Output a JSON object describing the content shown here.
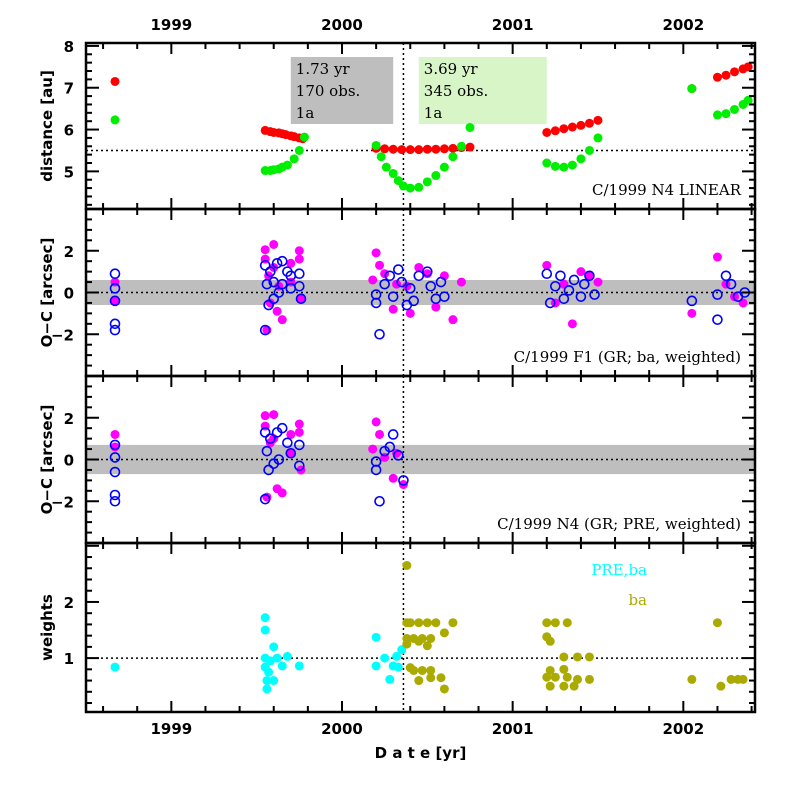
{
  "chart_data": [
    {
      "type": "scatter",
      "panel": "distance",
      "ylabel": "distance [au]",
      "ylim": [
        4.1,
        8.07
      ],
      "xlim": [
        1998.5,
        2002.42
      ],
      "yticks": [
        5,
        6,
        7,
        8
      ],
      "top_xtick_labels": [
        "1999",
        "2000",
        "2001",
        "2002"
      ],
      "reference_line": 5.5,
      "marker_line_x": 2000.36,
      "annotation": "C/1999 N4 LINEAR",
      "boxes": [
        {
          "lines": [
            "1.73 yr",
            "170 obs.",
            "1a"
          ],
          "color": "#bebebe",
          "x_range": [
            1999.7,
            2000.3
          ]
        },
        {
          "lines": [
            "3.69 yr",
            "345 obs.",
            "1a"
          ],
          "color": "#d8f5c8",
          "x_range": [
            2000.45,
            2001.2
          ]
        }
      ],
      "series": [
        {
          "name": "heliocentric distance",
          "color": "#ff0000",
          "x": [
            1998.67,
            1999.55,
            1999.58,
            1999.6,
            1999.63,
            1999.65,
            1999.67,
            1999.7,
            1999.72,
            1999.75,
            1999.77,
            2000.2,
            2000.25,
            2000.3,
            2000.35,
            2000.4,
            2000.45,
            2000.5,
            2000.55,
            2000.6,
            2000.65,
            2000.7,
            2000.75,
            2001.2,
            2001.25,
            2001.3,
            2001.35,
            2001.4,
            2001.45,
            2001.5,
            2002.05,
            2002.2,
            2002.25,
            2002.3,
            2002.35,
            2002.38
          ],
          "y": [
            7.15,
            5.98,
            5.95,
            5.93,
            5.92,
            5.9,
            5.88,
            5.85,
            5.83,
            5.8,
            5.78,
            5.55,
            5.54,
            5.53,
            5.52,
            5.52,
            5.52,
            5.53,
            5.53,
            5.54,
            5.55,
            5.57,
            5.58,
            5.93,
            5.97,
            6.02,
            6.06,
            6.1,
            6.15,
            6.22,
            6.98,
            7.25,
            7.3,
            7.38,
            7.45,
            7.5
          ]
        },
        {
          "name": "geocentric distance",
          "color": "#00ee00",
          "x": [
            1998.67,
            1999.55,
            1999.58,
            1999.6,
            1999.63,
            1999.65,
            1999.68,
            1999.72,
            1999.75,
            1999.78,
            2000.2,
            2000.23,
            2000.26,
            2000.3,
            2000.33,
            2000.36,
            2000.4,
            2000.45,
            2000.5,
            2000.55,
            2000.6,
            2000.65,
            2000.7,
            2000.75,
            2001.2,
            2001.25,
            2001.3,
            2001.35,
            2001.4,
            2001.45,
            2001.5,
            2002.05,
            2002.2,
            2002.25,
            2002.3,
            2002.35,
            2002.38
          ],
          "y": [
            6.23,
            5.02,
            5.02,
            5.04,
            5.06,
            5.1,
            5.15,
            5.3,
            5.5,
            5.82,
            5.62,
            5.35,
            5.1,
            4.95,
            4.78,
            4.65,
            4.6,
            4.62,
            4.75,
            4.9,
            5.1,
            5.35,
            5.6,
            6.05,
            5.2,
            5.12,
            5.1,
            5.15,
            5.3,
            5.5,
            5.8,
            6.98,
            6.35,
            6.38,
            6.48,
            6.6,
            6.7
          ]
        }
      ]
    },
    {
      "type": "scatter",
      "panel": "oc-f1",
      "ylabel": "O−C [arcsec]",
      "ylim": [
        -4,
        4
      ],
      "xlim": [
        1998.5,
        2002.42
      ],
      "yticks": [
        -2,
        0,
        2
      ],
      "band": [
        -0.6,
        0.6
      ],
      "reference_line": 0,
      "marker_line_x": 2000.36,
      "annotation": "C/1999 F1 (GR; ba, weighted)",
      "series": [
        {
          "name": "O-C dec",
          "color": "#ff00ff",
          "marker": "filled",
          "x": [
            1998.67,
            1998.67,
            1999.55,
            1999.55,
            1999.56,
            1999.57,
            1999.58,
            1999.6,
            1999.6,
            1999.62,
            1999.63,
            1999.65,
            1999.7,
            1999.7,
            1999.75,
            1999.75,
            1999.76,
            2000.18,
            2000.2,
            2000.22,
            2000.25,
            2000.3,
            2000.32,
            2000.38,
            2000.4,
            2000.45,
            2000.5,
            2000.55,
            2000.6,
            2000.65,
            2000.7,
            2001.2,
            2001.25,
            2001.3,
            2001.35,
            2001.4,
            2001.45,
            2001.5,
            2002.05,
            2002.2,
            2002.25,
            2002.3,
            2002.35
          ],
          "y": [
            0.5,
            -0.4,
            2.05,
            1.6,
            -1.8,
            0.8,
            -0.5,
            2.3,
            1.2,
            -0.9,
            0.3,
            -1.3,
            1.4,
            0.5,
            2.0,
            1.6,
            -0.3,
            0.6,
            1.9,
            1.3,
            0.9,
            -0.8,
            0.4,
            0.3,
            -1.0,
            1.2,
            0.9,
            -0.7,
            0.8,
            -1.3,
            0.5,
            1.3,
            -0.5,
            0.4,
            -1.5,
            1.0,
            0.8,
            0.5,
            -1.0,
            1.7,
            0.4,
            -0.2,
            -0.5
          ]
        },
        {
          "name": "O-C ra",
          "color": "#0000ff",
          "marker": "open",
          "x": [
            1998.67,
            1998.67,
            1998.67,
            1998.67,
            1998.67,
            1999.55,
            1999.55,
            1999.56,
            1999.57,
            1999.58,
            1999.6,
            1999.6,
            1999.62,
            1999.63,
            1999.65,
            1999.65,
            1999.68,
            1999.7,
            1999.7,
            1999.75,
            1999.75,
            1999.76,
            2000.2,
            2000.2,
            2000.22,
            2000.25,
            2000.28,
            2000.3,
            2000.33,
            2000.35,
            2000.38,
            2000.4,
            2000.42,
            2000.45,
            2000.5,
            2000.52,
            2000.55,
            2000.58,
            2000.6,
            2001.2,
            2001.22,
            2001.25,
            2001.28,
            2001.3,
            2001.33,
            2001.36,
            2001.4,
            2001.42,
            2001.45,
            2001.48,
            2002.05,
            2002.2,
            2002.2,
            2002.25,
            2002.28,
            2002.32,
            2002.36
          ],
          "y": [
            0.9,
            0.2,
            -0.4,
            -1.5,
            -1.8,
            1.3,
            -1.8,
            0.4,
            -0.6,
            1.0,
            0.5,
            -0.3,
            1.4,
            0.0,
            1.5,
            0.4,
            1.0,
            0.8,
            0.2,
            0.9,
            0.3,
            -0.3,
            -0.1,
            -0.5,
            -2.0,
            0.4,
            0.8,
            -0.2,
            1.1,
            0.5,
            -0.6,
            0.2,
            -0.4,
            0.8,
            1.0,
            0.3,
            -0.3,
            0.5,
            -0.2,
            0.9,
            -0.5,
            0.3,
            0.8,
            -0.3,
            0.1,
            0.6,
            -0.2,
            0.4,
            0.8,
            -0.1,
            -0.4,
            -1.3,
            -0.1,
            0.8,
            0.4,
            -0.2,
            0.0
          ]
        }
      ]
    },
    {
      "type": "scatter",
      "panel": "oc-n4",
      "ylabel": "O−C [arcsec]",
      "ylim": [
        -4,
        4
      ],
      "xlim": [
        1998.5,
        2002.42
      ],
      "yticks": [
        -2,
        0,
        2
      ],
      "band": [
        -0.7,
        0.7
      ],
      "reference_line": 0,
      "marker_line_x": 2000.36,
      "annotation": "C/1999 N4 (GR; PRE, weighted)",
      "series": [
        {
          "name": "O-C dec",
          "color": "#ff00ff",
          "marker": "filled",
          "x": [
            1998.67,
            1998.67,
            1999.55,
            1999.55,
            1999.56,
            1999.58,
            1999.6,
            1999.6,
            1999.62,
            1999.65,
            1999.7,
            1999.7,
            1999.75,
            1999.75,
            1999.76,
            2000.18,
            2000.2,
            2000.22,
            2000.25,
            2000.3,
            2000.32,
            2000.36
          ],
          "y": [
            1.2,
            0.6,
            2.1,
            1.6,
            -1.8,
            0.8,
            2.15,
            1.0,
            -1.4,
            -1.6,
            1.2,
            0.3,
            1.7,
            1.3,
            -0.5,
            0.5,
            1.8,
            1.2,
            0.1,
            -0.9,
            0.3,
            -1.2
          ]
        },
        {
          "name": "O-C ra",
          "color": "#0000ff",
          "marker": "open",
          "x": [
            1998.67,
            1998.67,
            1998.67,
            1998.67,
            1998.67,
            1999.55,
            1999.55,
            1999.56,
            1999.57,
            1999.58,
            1999.6,
            1999.62,
            1999.63,
            1999.65,
            1999.68,
            1999.7,
            1999.75,
            1999.75,
            2000.2,
            2000.2,
            2000.22,
            2000.25,
            2000.28,
            2000.3,
            2000.33,
            2000.36
          ],
          "y": [
            0.7,
            0.1,
            -0.6,
            -1.7,
            -2.0,
            1.3,
            -1.9,
            0.4,
            -0.5,
            1.0,
            -0.2,
            1.3,
            0.0,
            1.5,
            0.8,
            0.3,
            0.7,
            -0.3,
            -0.1,
            -0.5,
            -2.0,
            0.4,
            0.6,
            1.2,
            0.2,
            -1.0
          ]
        }
      ]
    },
    {
      "type": "scatter",
      "panel": "weights",
      "ylabel": "weights",
      "xlabel": "D a t e [yr]",
      "ylim": [
        0.04,
        3.05
      ],
      "xlim": [
        1998.5,
        2002.42
      ],
      "yticks": [
        1,
        2
      ],
      "bottom_xtick_labels": [
        "1999",
        "2000",
        "2001",
        "2002"
      ],
      "reference_line": 1,
      "marker_line_x": 2000.36,
      "legend": [
        {
          "label": "PRE,ba",
          "color": "#00ffff"
        },
        {
          "label": "ba",
          "color": "#aaaa00"
        }
      ],
      "series": [
        {
          "name": "PRE,ba",
          "color": "#00ffff",
          "x": [
            1998.67,
            1999.55,
            1999.55,
            1999.55,
            1999.55,
            1999.56,
            1999.56,
            1999.57,
            1999.58,
            1999.6,
            1999.6,
            1999.62,
            1999.65,
            1999.68,
            1999.75,
            2000.2,
            2000.2,
            2000.25,
            2000.28,
            2000.3,
            2000.32,
            2000.35,
            2000.33
          ],
          "y": [
            0.84,
            1.72,
            1.5,
            1.0,
            0.84,
            0.6,
            0.45,
            0.75,
            0.95,
            1.2,
            0.6,
            1.0,
            0.86,
            1.03,
            0.86,
            1.37,
            0.86,
            1.0,
            0.62,
            0.86,
            1.03,
            1.15,
            0.84
          ]
        },
        {
          "name": "ba",
          "color": "#aaaa00",
          "x": [
            2000.38,
            2000.38,
            2000.4,
            2000.45,
            2000.5,
            2000.55,
            2000.65,
            2000.38,
            2000.42,
            2000.47,
            2000.52,
            2000.6,
            2000.38,
            2000.45,
            2000.5,
            2000.4,
            2000.42,
            2000.47,
            2000.52,
            2000.58,
            2000.45,
            2000.52,
            2000.6,
            2001.2,
            2001.25,
            2001.32,
            2001.2,
            2001.22,
            2001.3,
            2001.38,
            2001.45,
            2001.22,
            2001.3,
            2001.2,
            2001.25,
            2001.32,
            2001.38,
            2001.45,
            2001.22,
            2001.3,
            2001.36,
            2002.05,
            2002.2,
            2002.22,
            2002.28,
            2002.32,
            2002.35
          ],
          "y": [
            2.65,
            1.63,
            1.63,
            1.63,
            1.63,
            1.63,
            1.63,
            1.35,
            1.35,
            1.35,
            1.35,
            1.45,
            1.25,
            1.3,
            1.22,
            0.83,
            0.78,
            0.78,
            0.78,
            0.65,
            0.6,
            0.65,
            0.45,
            1.63,
            1.63,
            1.63,
            1.38,
            1.3,
            1.02,
            1.02,
            1.02,
            0.78,
            0.8,
            0.66,
            0.66,
            0.66,
            0.62,
            0.62,
            0.5,
            0.5,
            0.5,
            0.62,
            1.63,
            0.5,
            0.62,
            0.62,
            0.62
          ]
        }
      ]
    }
  ]
}
